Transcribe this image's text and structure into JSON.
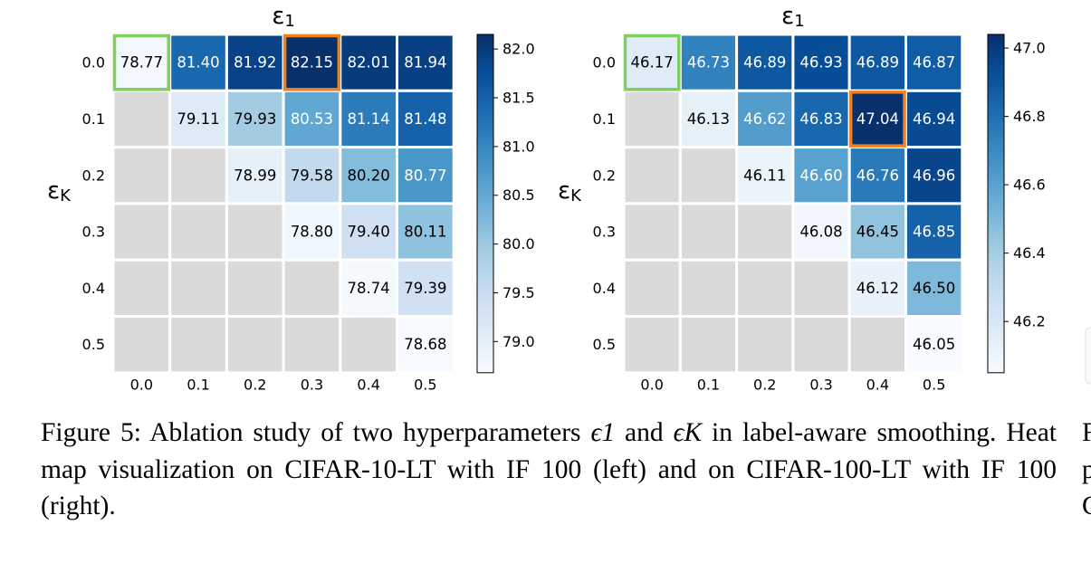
{
  "chart_data": [
    {
      "type": "heatmap",
      "title": "ε1",
      "ylabel": "εK",
      "x": [
        "0.0",
        "0.1",
        "0.2",
        "0.3",
        "0.4",
        "0.5"
      ],
      "y": [
        "0.0",
        "0.1",
        "0.2",
        "0.3",
        "0.4",
        "0.5"
      ],
      "values": [
        [
          "78.77",
          "81.40",
          "81.92",
          "82.15",
          "82.01",
          "81.94"
        ],
        [
          null,
          "79.11",
          "79.93",
          "80.53",
          "81.14",
          "81.48"
        ],
        [
          null,
          null,
          "78.99",
          "79.58",
          "80.20",
          "80.77"
        ],
        [
          null,
          null,
          null,
          "78.80",
          "79.40",
          "80.11"
        ],
        [
          null,
          null,
          null,
          null,
          "78.74",
          "79.39"
        ],
        [
          null,
          null,
          null,
          null,
          null,
          "78.68"
        ]
      ],
      "colorbar": {
        "range": [
          78.68,
          82.15
        ],
        "ticks": [
          "79.0",
          "79.5",
          "80.0",
          "80.5",
          "81.0",
          "81.5",
          "82.0"
        ]
      },
      "highlights": [
        {
          "row": 0,
          "col": 0,
          "color": "#7fcf5f"
        },
        {
          "row": 0,
          "col": 3,
          "color": "#f07f1f"
        }
      ],
      "colormap": "Blues",
      "empty_color": "#dadada"
    },
    {
      "type": "heatmap",
      "title": "ε1",
      "ylabel": "εK",
      "x": [
        "0.0",
        "0.1",
        "0.2",
        "0.3",
        "0.4",
        "0.5"
      ],
      "y": [
        "0.0",
        "0.1",
        "0.2",
        "0.3",
        "0.4",
        "0.5"
      ],
      "values": [
        [
          "46.17",
          "46.73",
          "46.89",
          "46.93",
          "46.89",
          "46.87"
        ],
        [
          null,
          "46.13",
          "46.62",
          "46.83",
          "47.04",
          "46.94"
        ],
        [
          null,
          null,
          "46.11",
          "46.60",
          "46.76",
          "46.96"
        ],
        [
          null,
          null,
          null,
          "46.08",
          "46.45",
          "46.85"
        ],
        [
          null,
          null,
          null,
          null,
          "46.12",
          "46.50"
        ],
        [
          null,
          null,
          null,
          null,
          null,
          "46.05"
        ]
      ],
      "colorbar": {
        "range": [
          46.05,
          47.04
        ],
        "ticks": [
          "46.2",
          "46.4",
          "46.6",
          "46.8",
          "47.0"
        ]
      },
      "highlights": [
        {
          "row": 0,
          "col": 0,
          "color": "#7fcf5f"
        },
        {
          "row": 1,
          "col": 4,
          "color": "#f07f1f"
        }
      ],
      "colormap": "Blues",
      "empty_color": "#dadada"
    }
  ],
  "caption": {
    "label": "Figure 5:",
    "text_1": " Ablation study of two hyperparameters ",
    "sym_1": "ϵ1",
    "text_2": " and ",
    "sym_2": "ϵK",
    "text_3": " in label-aware smoothing. Heat map visualization on CIFAR-10-LT with IF 100 (left) and on CIFAR-100-LT with IF 100 (right)."
  },
  "clipped_column_glyphs": [
    "F",
    "p",
    "C"
  ]
}
